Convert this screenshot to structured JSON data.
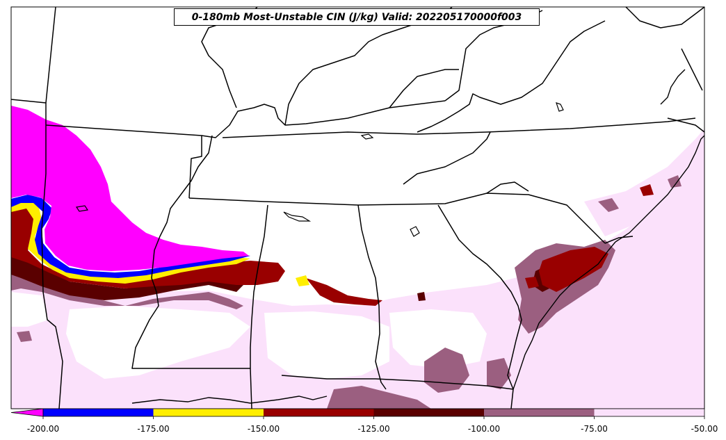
{
  "title": "0-180mb Most-Unstable CIN (J/kg) Valid: 202205170000f003",
  "colorbar": {
    "extend": "min",
    "ticks": [
      "-200.00",
      "-175.00",
      "-150.00",
      "-125.00",
      "-100.00",
      "-75.00",
      "-50.00"
    ],
    "bins": [
      {
        "from": -200,
        "to": -175,
        "color": "#0000ff"
      },
      {
        "from": -175,
        "to": -150,
        "color": "#ffee00"
      },
      {
        "from": -150,
        "to": -125,
        "color": "#990000"
      },
      {
        "from": -125,
        "to": -100,
        "color": "#5a0000"
      },
      {
        "from": -100,
        "to": -75,
        "color": "#9b5f80"
      },
      {
        "from": -75,
        "to": -50,
        "color": "#fbe1fb"
      }
    ],
    "under_color": "#ff00ff"
  },
  "colors": {
    "under": "#ff00ff",
    "blue": "#0000ff",
    "yellow": "#ffee00",
    "red": "#990000",
    "darkred": "#5a0000",
    "mauve": "#9b5f80",
    "pink": "#fbe1fb",
    "border": "#000000"
  }
}
